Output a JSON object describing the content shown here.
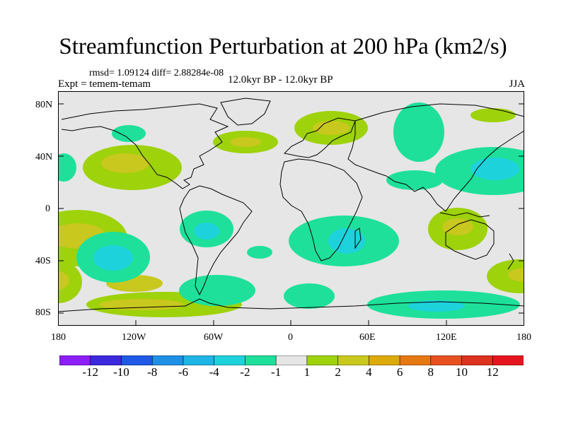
{
  "title": "Streamfunction Perturbation at 200 hPa (km2/s)",
  "stats": "rmsd= 1.09124 diff= 2.88284e-08",
  "experiment": "Expt = temem-temam",
  "period": "12.0kyr BP - 12.0kyr BP",
  "season": "JJA",
  "lat_labels": [
    "80N",
    "40N",
    "0",
    "40S",
    "80S"
  ],
  "lon_labels": [
    "180",
    "120W",
    "60W",
    "0",
    "60E",
    "120E",
    "180"
  ],
  "colorbar": {
    "labels": [
      "-12",
      "-10",
      "-8",
      "-6",
      "-4",
      "-2",
      "-1",
      "1",
      "2",
      "4",
      "6",
      "8",
      "10",
      "12"
    ],
    "colors": [
      "#8c1efa",
      "#3c28dc",
      "#1e5ae6",
      "#1e90e6",
      "#1eb4e6",
      "#1ed2dc",
      "#1ee09a",
      "#e6e6e6",
      "#9ed20a",
      "#c8c81e",
      "#dcaa0a",
      "#e67814",
      "#e6501e",
      "#dc321e",
      "#e6141e"
    ]
  },
  "palette": {
    "background": "#e6e6e6",
    "neg1": "#1ee09a",
    "neg2": "#1ed2dc",
    "pos1": "#9ed20a",
    "pos2": "#c8c81e",
    "land": "#000000"
  }
}
